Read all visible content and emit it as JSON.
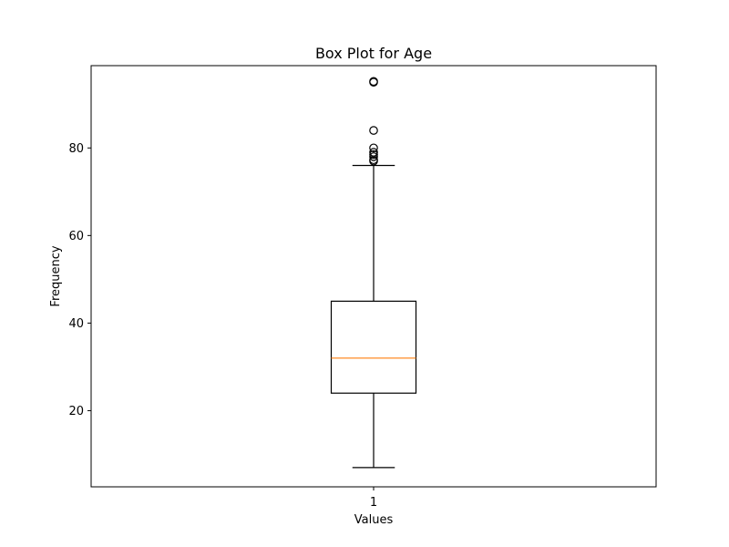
{
  "chart_data": {
    "type": "box",
    "title": "Box Plot for Age",
    "xlabel": "Values",
    "ylabel": "Frequency",
    "categories": [
      "1"
    ],
    "ylim": [
      2.6,
      98.8
    ],
    "yticks": [
      20,
      40,
      60,
      80
    ],
    "grid": false,
    "series": [
      {
        "whisker_low": 7,
        "q1": 24,
        "median": 32,
        "q3": 45,
        "whisker_high": 76,
        "outliers": [
          77,
          77.3,
          78,
          78.5,
          79,
          80,
          84,
          95,
          95.2
        ]
      }
    ],
    "colors": {
      "box": "#000000",
      "median": "#ff7f0e",
      "background": "#ffffff"
    }
  }
}
